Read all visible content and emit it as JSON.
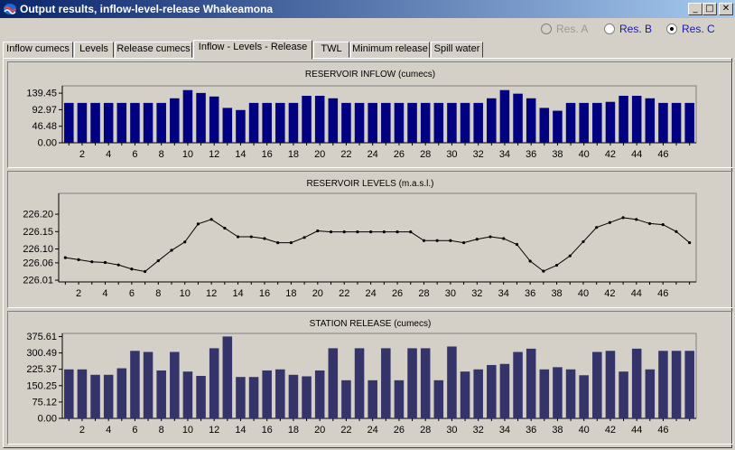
{
  "window": {
    "title": "Output results, inflow-level-release Whakeamona"
  },
  "radio": [
    {
      "label": "Res. A",
      "selected": false,
      "disabled": true
    },
    {
      "label": "Res. B",
      "selected": false,
      "disabled": false
    },
    {
      "label": "Res. C",
      "selected": true,
      "disabled": false
    }
  ],
  "tabs": [
    {
      "label": "Inflow cumecs"
    },
    {
      "label": "Levels"
    },
    {
      "label": "Release cumecs"
    },
    {
      "label": "Inflow - Levels - Release",
      "active": true
    },
    {
      "label": "TWL"
    },
    {
      "label": "Minimum release"
    },
    {
      "label": "Spill water"
    }
  ],
  "chart_data": [
    {
      "type": "bar",
      "title": "RESERVOIR INFLOW (cumecs)",
      "color": "#000080",
      "ylim": [
        0,
        160
      ],
      "yticks": [
        "0.00",
        "46.48",
        "92.97",
        "139.45"
      ],
      "xticks": [
        "2",
        "4",
        "6",
        "8",
        "10",
        "12",
        "14",
        "16",
        "18",
        "20",
        "22",
        "24",
        "26",
        "28",
        "30",
        "32",
        "34",
        "36",
        "38",
        "40",
        "42",
        "44",
        "46"
      ],
      "x": [
        1,
        2,
        3,
        4,
        5,
        6,
        7,
        8,
        9,
        10,
        11,
        12,
        13,
        14,
        15,
        16,
        17,
        18,
        19,
        20,
        21,
        22,
        23,
        24,
        25,
        26,
        27,
        28,
        29,
        30,
        31,
        32,
        33,
        34,
        35,
        36,
        37,
        38,
        39,
        40,
        41,
        42,
        43,
        44,
        45,
        46,
        47,
        48
      ],
      "values": [
        112,
        112,
        112,
        112,
        112,
        112,
        112,
        112,
        125,
        148,
        140,
        130,
        98,
        92,
        112,
        112,
        112,
        112,
        132,
        132,
        125,
        112,
        112,
        112,
        112,
        112,
        112,
        112,
        112,
        112,
        112,
        112,
        125,
        148,
        138,
        125,
        98,
        90,
        112,
        112,
        112,
        115,
        132,
        132,
        125,
        112,
        112,
        112
      ]
    },
    {
      "type": "line",
      "title": "RESERVOIR LEVELS (m.a.s.l.)",
      "color": "#000000",
      "ylim": [
        226.005,
        226.26
      ],
      "yticks": [
        "226.01",
        "226.06",
        "226.10",
        "226.15",
        "226.20"
      ],
      "xticks": [
        "2",
        "4",
        "6",
        "8",
        "10",
        "12",
        "14",
        "16",
        "18",
        "20",
        "22",
        "24",
        "26",
        "28",
        "30",
        "32",
        "34",
        "36",
        "38",
        "40",
        "42",
        "44",
        "46"
      ],
      "x": [
        1,
        2,
        3,
        4,
        5,
        6,
        7,
        8,
        9,
        10,
        11,
        12,
        13,
        14,
        15,
        16,
        17,
        18,
        19,
        20,
        21,
        22,
        23,
        24,
        25,
        26,
        27,
        28,
        29,
        30,
        31,
        32,
        33,
        34,
        35,
        36,
        37,
        38,
        39,
        40,
        41,
        42,
        43,
        44,
        45,
        46,
        47,
        48
      ],
      "values": [
        226.075,
        226.069,
        226.063,
        226.061,
        226.054,
        226.042,
        226.035,
        226.066,
        226.096,
        226.12,
        226.172,
        226.185,
        226.16,
        226.135,
        226.135,
        226.13,
        226.118,
        226.118,
        226.133,
        226.152,
        226.149,
        226.149,
        226.149,
        226.149,
        226.149,
        226.149,
        226.149,
        226.124,
        226.124,
        226.124,
        226.118,
        226.128,
        226.135,
        226.13,
        226.113,
        226.065,
        226.036,
        226.053,
        226.08,
        226.121,
        226.162,
        226.176,
        226.19,
        226.185,
        226.173,
        226.17,
        226.15,
        226.118
      ]
    },
    {
      "type": "bar",
      "title": "STATION RELEASE (cumecs)",
      "color": "#34346a",
      "ylim": [
        0,
        390
      ],
      "yticks": [
        "0.00",
        "75.12",
        "150.25",
        "225.37",
        "300.49",
        "375.61"
      ],
      "xticks": [
        "2",
        "4",
        "6",
        "8",
        "10",
        "12",
        "14",
        "16",
        "18",
        "20",
        "22",
        "24",
        "26",
        "28",
        "30",
        "32",
        "34",
        "36",
        "38",
        "40",
        "42",
        "44",
        "46"
      ],
      "x": [
        1,
        2,
        3,
        4,
        5,
        6,
        7,
        8,
        9,
        10,
        11,
        12,
        13,
        14,
        15,
        16,
        17,
        18,
        19,
        20,
        21,
        22,
        23,
        24,
        25,
        26,
        27,
        28,
        29,
        30,
        31,
        32,
        33,
        34,
        35,
        36,
        37,
        38,
        39,
        40,
        41,
        42,
        43,
        44,
        45,
        46,
        47,
        48
      ],
      "values": [
        225,
        225,
        200,
        200,
        230,
        310,
        305,
        220,
        305,
        215,
        195,
        322,
        376,
        190,
        190,
        220,
        225,
        200,
        193,
        220,
        322,
        175,
        322,
        175,
        322,
        175,
        322,
        322,
        175,
        330,
        215,
        225,
        245,
        250,
        305,
        320,
        225,
        235,
        225,
        198,
        305,
        310,
        215,
        320,
        225,
        310,
        310,
        310
      ]
    }
  ]
}
